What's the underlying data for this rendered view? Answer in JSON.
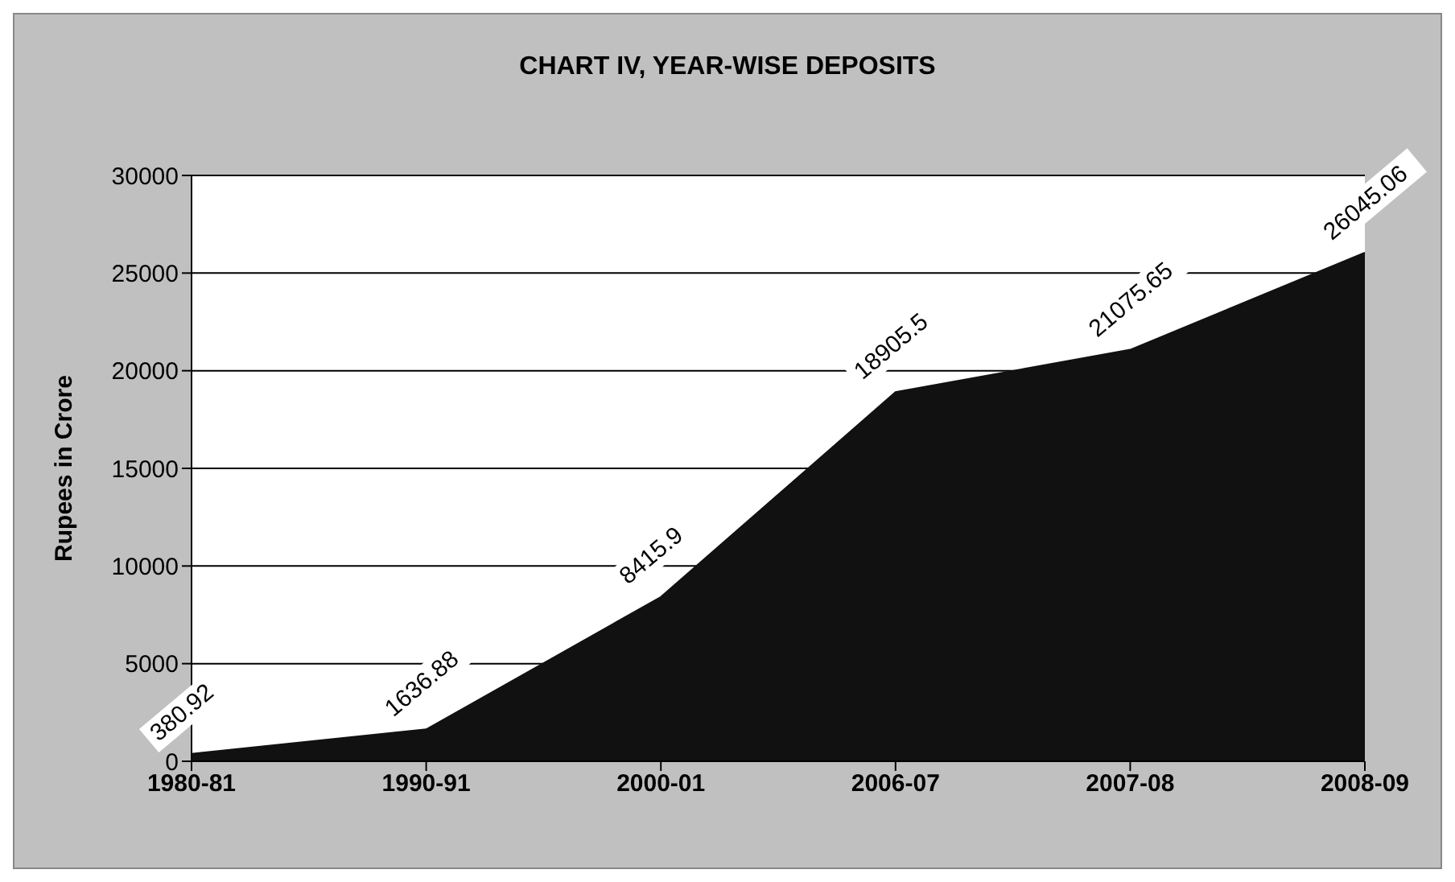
{
  "chart_data": {
    "type": "area",
    "title": "CHART IV,  YEAR-WISE DEPOSITS",
    "ylabel": "Rupees in Crore",
    "categories": [
      "1980-81",
      "1990-91",
      "2000-01",
      "2006-07",
      "2007-08",
      "2008-09"
    ],
    "values": [
      380.92,
      1636.88,
      8415.9,
      18905.5,
      21075.65,
      26045.06
    ],
    "color": "#111111",
    "ylim": [
      0,
      30000
    ],
    "yticks": [
      0,
      5000,
      10000,
      15000,
      20000,
      25000,
      30000
    ],
    "grid": "y",
    "data_labels": true
  }
}
